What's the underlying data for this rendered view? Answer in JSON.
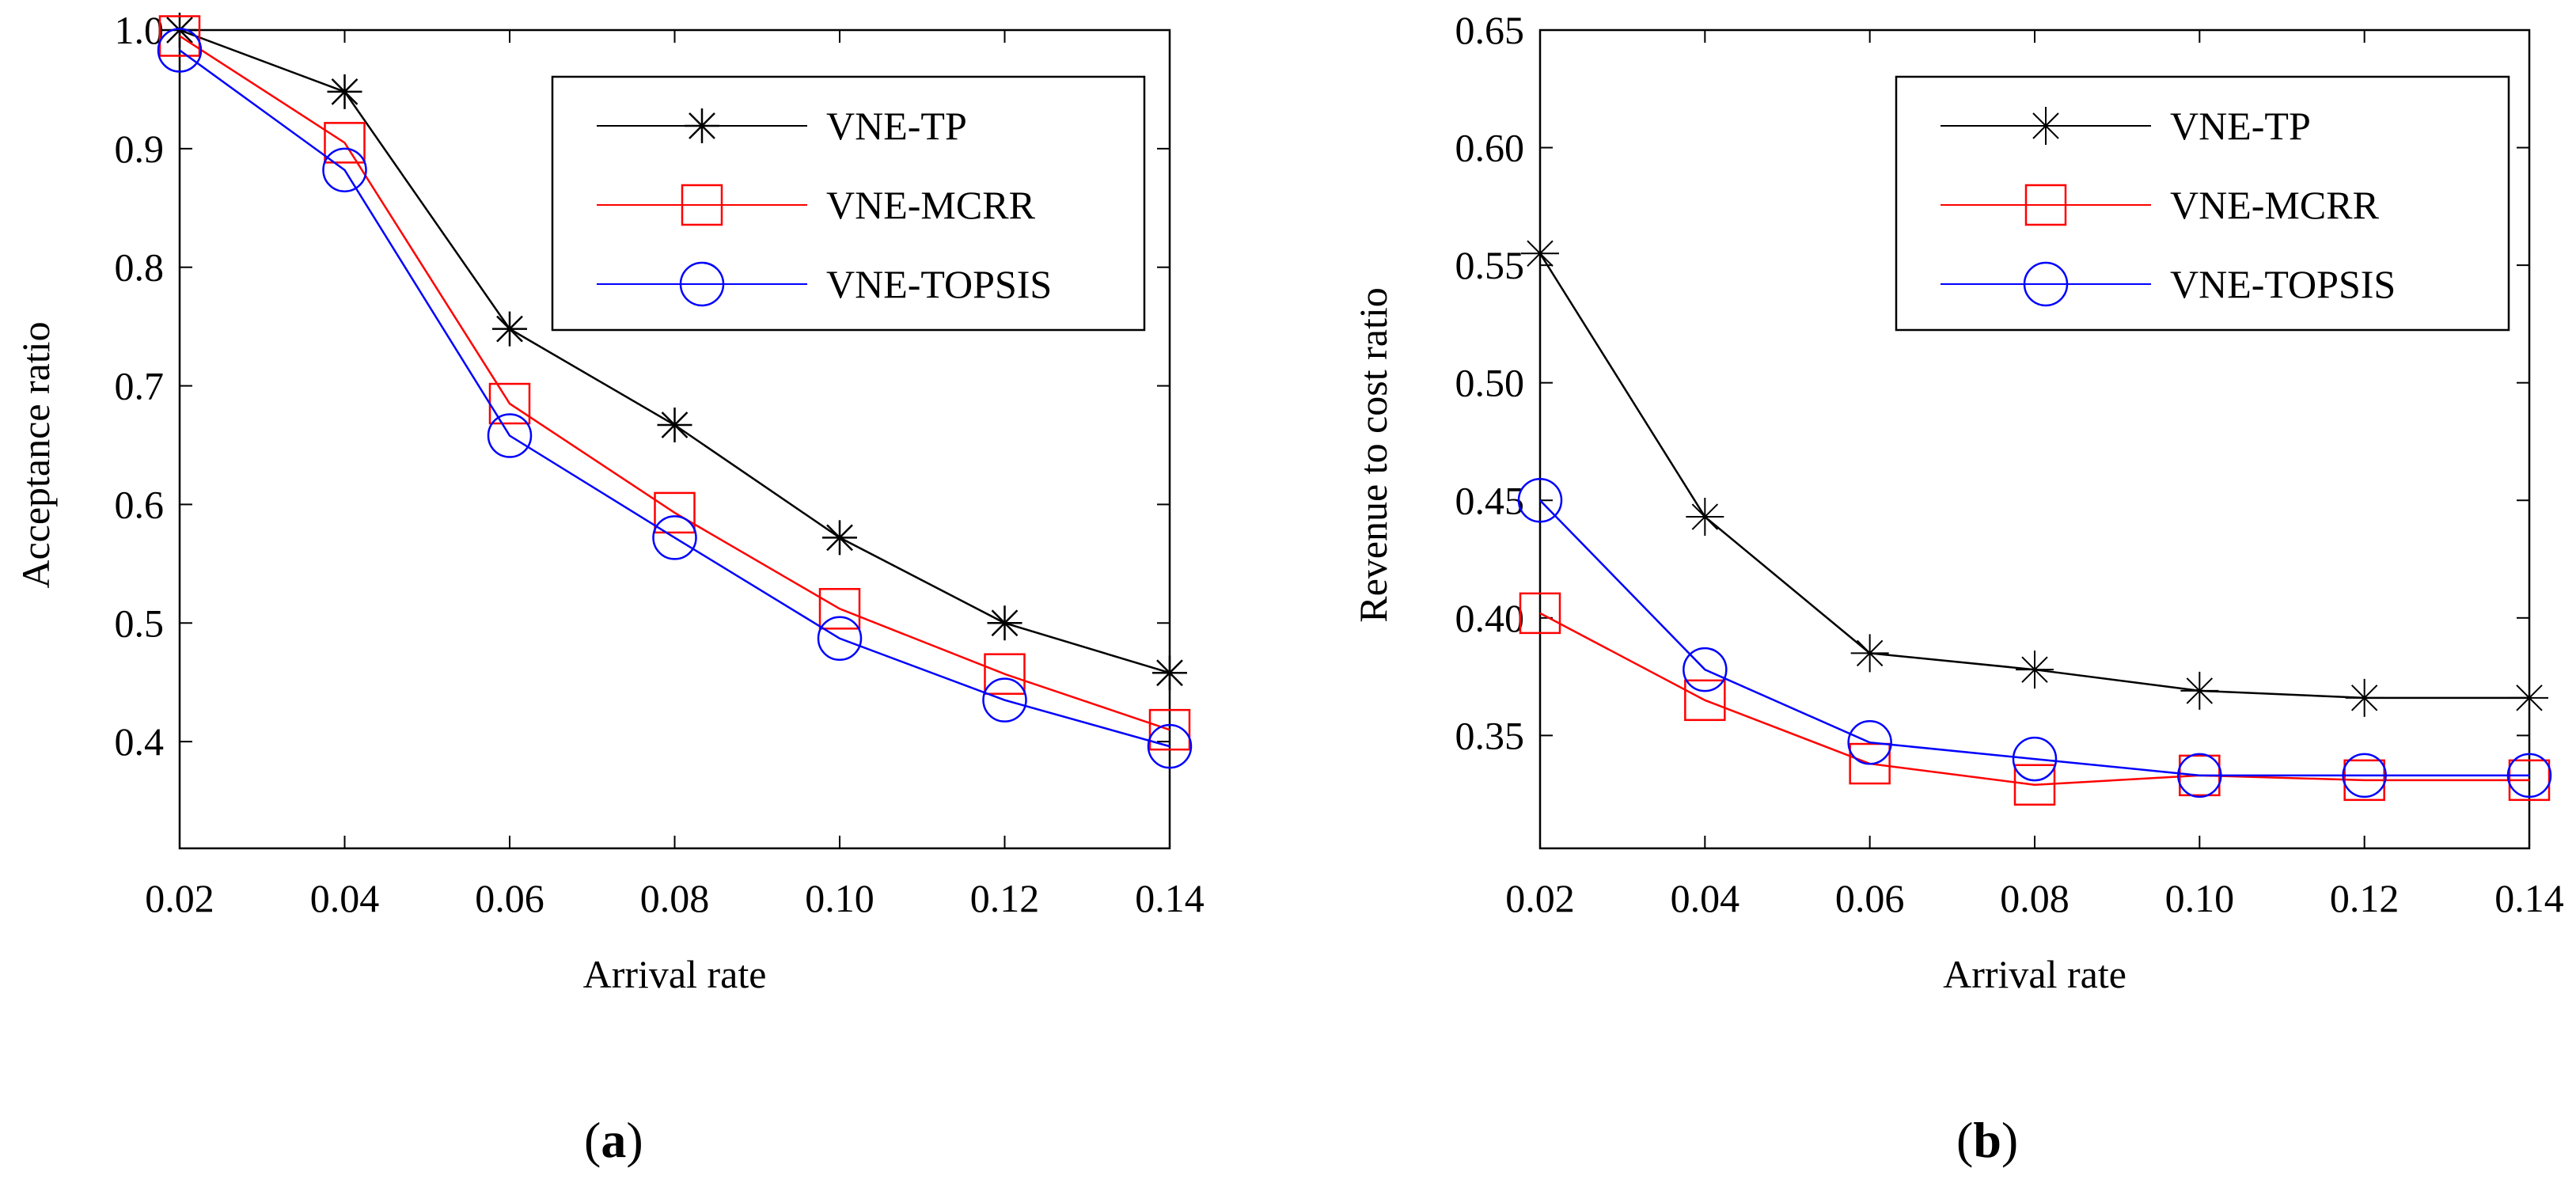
{
  "chart_data": [
    {
      "type": "line",
      "panel_label": "a",
      "x": [
        0.02,
        0.04,
        0.06,
        0.08,
        0.1,
        0.12,
        0.14
      ],
      "x_tick_labels": [
        "0.02",
        "0.04",
        "0.06",
        "0.08",
        "0.10",
        "0.12",
        "0.14"
      ],
      "y_tick_labels": [
        "0.4",
        "0.5",
        "0.6",
        "0.7",
        "0.8",
        "0.9",
        "1.0"
      ],
      "xlabel": "Arrival rate",
      "ylabel": "Acceptance ratio",
      "xlim": [
        0.02,
        0.14
      ],
      "ylim": [
        0.31,
        1.0
      ],
      "grid": false,
      "legend_position": "top-right",
      "series": [
        {
          "name": "VNE-TP",
          "color": "#000000",
          "marker": "asterisk",
          "values": [
            1.0,
            0.948,
            0.748,
            0.667,
            0.572,
            0.5,
            0.458
          ]
        },
        {
          "name": "VNE-MCRR",
          "color": "#ff0000",
          "marker": "square",
          "values": [
            0.995,
            0.905,
            0.685,
            0.593,
            0.512,
            0.457,
            0.41
          ]
        },
        {
          "name": "VNE-TOPSIS",
          "color": "#0000ff",
          "marker": "circle",
          "values": [
            0.983,
            0.882,
            0.658,
            0.572,
            0.487,
            0.435,
            0.396
          ]
        }
      ]
    },
    {
      "type": "line",
      "panel_label": "b",
      "x": [
        0.02,
        0.04,
        0.06,
        0.08,
        0.1,
        0.12,
        0.14
      ],
      "x_tick_labels": [
        "0.02",
        "0.04",
        "0.06",
        "0.08",
        "0.10",
        "0.12",
        "0.14"
      ],
      "y_tick_labels": [
        "0.35",
        "0.40",
        "0.45",
        "0.50",
        "0.55",
        "0.60",
        "0.65"
      ],
      "xlabel": "Arrival rate",
      "ylabel": "Revenue to cost ratio",
      "xlim": [
        0.02,
        0.14
      ],
      "ylim": [
        0.302,
        0.65
      ],
      "grid": false,
      "legend_position": "top-right",
      "series": [
        {
          "name": "VNE-TP",
          "color": "#000000",
          "marker": "plus",
          "values": [
            0.555,
            0.443,
            0.385,
            0.378,
            0.369,
            0.366,
            0.366
          ]
        },
        {
          "name": "VNE-MCRR",
          "color": "#ff0000",
          "marker": "square",
          "values": [
            0.402,
            0.365,
            0.338,
            0.329,
            0.333,
            0.331,
            0.331
          ]
        },
        {
          "name": "VNE-TOPSIS",
          "color": "#0000ff",
          "marker": "circle",
          "values": [
            0.45,
            0.378,
            0.347,
            0.34,
            0.333,
            0.333,
            0.333
          ]
        }
      ]
    }
  ]
}
